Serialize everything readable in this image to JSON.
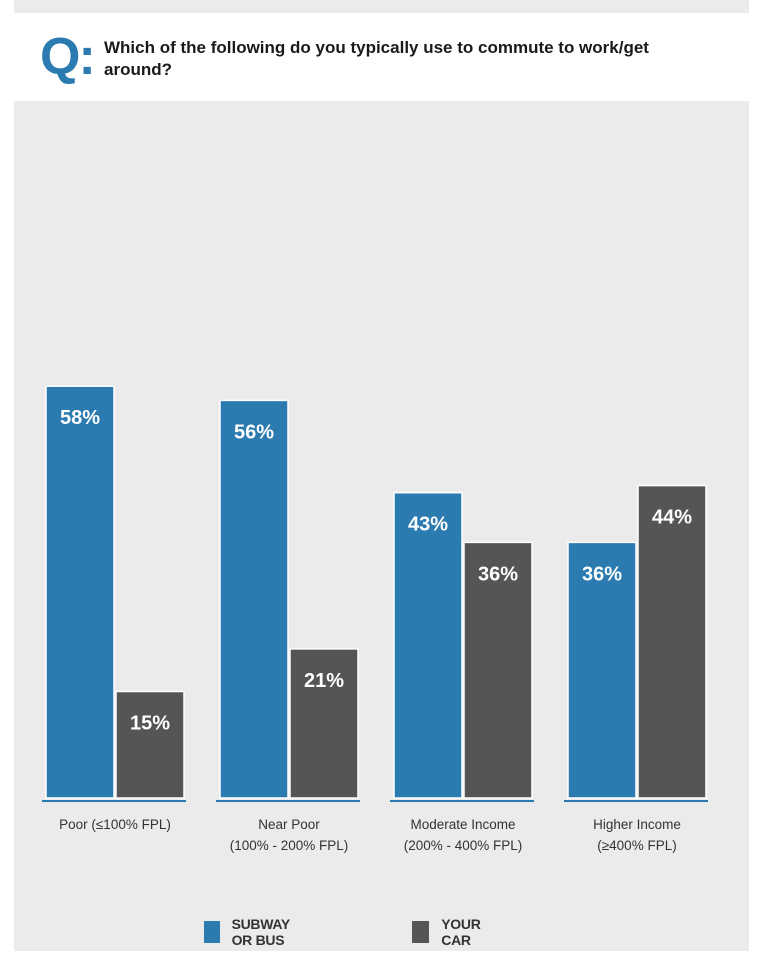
{
  "question": {
    "letter": "Q:",
    "text": "Which of the following do you typically use to commute to work/get around?"
  },
  "chart_data": {
    "type": "bar",
    "categories": [
      [
        "Poor (≤100% FPL)"
      ],
      [
        "Near Poor",
        "(100% - 200% FPL)"
      ],
      [
        "Moderate Income",
        "(200% - 400% FPL)"
      ],
      [
        "Higher Income",
        "(≥400% FPL)"
      ]
    ],
    "series": [
      {
        "name": "SUBWAY OR BUS",
        "values": [
          58,
          56,
          43,
          36
        ],
        "labels": [
          "58%",
          "56%",
          "43%",
          "36%"
        ],
        "color": "#2b7bb0"
      },
      {
        "name": "YOUR CAR",
        "values": [
          15,
          21,
          36,
          44
        ],
        "labels": [
          "15%",
          "21%",
          "36%",
          "44%"
        ],
        "color": "#555557"
      }
    ],
    "ylim": [
      0,
      100
    ],
    "grid": false,
    "legend": "bottom"
  }
}
